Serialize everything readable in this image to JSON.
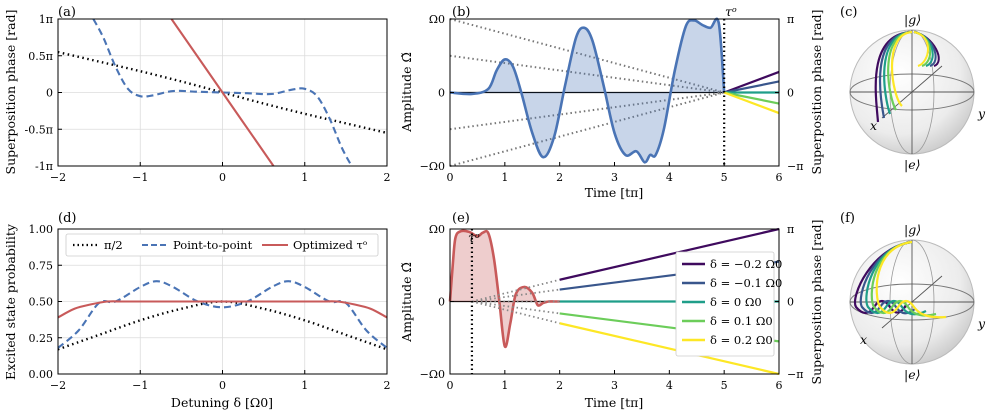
{
  "chart_data": [
    {
      "panel": "(a)",
      "type": "line",
      "xlabel": "",
      "ylabel": "Superposition phase [rad]",
      "xlim": [
        -2,
        2
      ],
      "ylim": [
        -1,
        1
      ],
      "xticks": [
        "−2",
        "−1",
        "0",
        "1",
        "2"
      ],
      "yticks": [
        "-1π",
        "-0.5π",
        "0",
        "0.5π",
        "1π"
      ],
      "grid": true,
      "series": [
        {
          "name": "π/2",
          "style": "dotted",
          "color": "#000000",
          "x": [
            -2,
            -1.5,
            -1,
            -0.5,
            0,
            0.5,
            1,
            1.5,
            2
          ],
          "y": [
            0.55,
            0.42,
            0.29,
            0.15,
            0,
            -0.15,
            -0.29,
            -0.42,
            -0.55
          ]
        },
        {
          "name": "Point-to-point",
          "style": "dashed",
          "color": "#4a74b5",
          "x": [
            -1.57,
            -1.45,
            -1.3,
            -1.15,
            -1.0,
            -0.85,
            -0.6,
            -0.3,
            0,
            0.3,
            0.6,
            0.85,
            1.0,
            1.15,
            1.3,
            1.45,
            1.57
          ],
          "y": [
            1.0,
            0.75,
            0.35,
            0.05,
            -0.05,
            -0.04,
            0.02,
            0.01,
            0,
            -0.01,
            -0.02,
            0.04,
            0.05,
            -0.05,
            -0.35,
            -0.75,
            -1.0
          ]
        },
        {
          "name": "Optimized τᵒ",
          "style": "solid",
          "color": "#c85a5a",
          "x": [
            -0.62,
            0,
            0.62
          ],
          "y": [
            1.0,
            0,
            -1.0
          ]
        }
      ]
    },
    {
      "panel": "(b)",
      "type": "area",
      "xlabel": "Time [tπ]",
      "ylabel": "Amplitude Ω̃",
      "ylabel_right": "Superposition phase [rad]",
      "xlim": [
        0,
        6
      ],
      "ylim": [
        -1,
        1
      ],
      "xticks": [
        "0",
        "1",
        "2",
        "3",
        "4",
        "5",
        "6"
      ],
      "yticks": [
        "−Ω0",
        "0",
        "Ω0"
      ],
      "yticks_right": [
        "−π",
        "0",
        "π"
      ],
      "annotation": "τᵒ",
      "tau": 5,
      "pulse": {
        "x": [
          0,
          0.4,
          0.7,
          0.85,
          1.0,
          1.15,
          1.3,
          1.5,
          1.7,
          1.9,
          2.1,
          2.3,
          2.45,
          2.6,
          2.8,
          3.0,
          3.2,
          3.4,
          3.55,
          3.65,
          3.75,
          3.9,
          4.1,
          4.3,
          4.45,
          4.6,
          4.75,
          4.9,
          5.0
        ],
        "y": [
          0,
          -0.02,
          0.05,
          0.3,
          0.45,
          0.35,
          0,
          -0.55,
          -0.88,
          -0.6,
          0.1,
          0.75,
          0.88,
          0.7,
          0.1,
          -0.55,
          -0.85,
          -0.8,
          -0.95,
          -0.85,
          -0.85,
          -0.5,
          0.3,
          0.9,
          0.98,
          0.92,
          0.88,
          0.95,
          0
        ]
      },
      "phase_lines": [
        {
          "delta": -0.2,
          "color": "#3f0a5e",
          "y_end": 0.28
        },
        {
          "delta": -0.1,
          "color": "#39568c",
          "y_end": 0.15
        },
        {
          "delta": 0.0,
          "color": "#1f9e89",
          "y_end": 0.0
        },
        {
          "delta": 0.1,
          "color": "#6ccd5a",
          "y_end": -0.15
        },
        {
          "delta": 0.2,
          "color": "#fde725",
          "y_end": -0.28
        }
      ]
    },
    {
      "panel": "(c)",
      "type": "other",
      "description_labels": [
        "|g⟩",
        "|e⟩",
        "x",
        "y"
      ]
    },
    {
      "panel": "(d)",
      "type": "line",
      "xlabel": "Detuning δ [Ω0]",
      "ylabel": "Excited state probability",
      "xlim": [
        -2,
        2
      ],
      "ylim": [
        0,
        1
      ],
      "xticks": [
        "−2",
        "−1",
        "0",
        "1",
        "2"
      ],
      "yticks": [
        "0.00",
        "0.25",
        "0.50",
        "0.75",
        "1.00"
      ],
      "grid": true,
      "legend": "top",
      "series": [
        {
          "name": "π/2",
          "style": "dotted",
          "color": "#000000",
          "x": [
            -2,
            -1.5,
            -1,
            -0.5,
            0,
            0.5,
            1,
            1.5,
            2
          ],
          "y": [
            0.17,
            0.27,
            0.37,
            0.45,
            0.5,
            0.45,
            0.37,
            0.27,
            0.17
          ]
        },
        {
          "name": "Point-to-point",
          "style": "dashed",
          "color": "#4a74b5",
          "x": [
            -2,
            -1.75,
            -1.5,
            -1.3,
            -1.0,
            -0.8,
            -0.6,
            -0.3,
            0,
            0.3,
            0.6,
            0.8,
            1.0,
            1.3,
            1.5,
            1.75,
            2
          ],
          "y": [
            0.18,
            0.3,
            0.49,
            0.5,
            0.6,
            0.64,
            0.6,
            0.5,
            0.46,
            0.5,
            0.6,
            0.64,
            0.6,
            0.5,
            0.49,
            0.3,
            0.18
          ]
        },
        {
          "name": "Optimized τᵒ",
          "style": "solid",
          "color": "#c85a5a",
          "x": [
            -2,
            -1.8,
            -1.6,
            -1.4,
            -1.2,
            -1,
            0,
            1,
            1.2,
            1.4,
            1.6,
            1.8,
            2
          ],
          "y": [
            0.39,
            0.45,
            0.48,
            0.5,
            0.5,
            0.5,
            0.5,
            0.5,
            0.5,
            0.5,
            0.48,
            0.45,
            0.39
          ]
        }
      ],
      "legend_entries": [
        "π/2",
        "Point-to-point",
        "Optimized τᵒ"
      ]
    },
    {
      "panel": "(e)",
      "type": "area",
      "xlabel": "Time [tπ]",
      "ylabel": "Amplitude Ω̃",
      "ylabel_right": "Superposition phase [rad]",
      "xlim": [
        0,
        6
      ],
      "ylim": [
        -1,
        1
      ],
      "xticks": [
        "0",
        "1",
        "2",
        "3",
        "4",
        "5",
        "6"
      ],
      "yticks": [
        "−Ω0",
        "0",
        "Ω0"
      ],
      "yticks_right": [
        "−π",
        "0",
        "π"
      ],
      "annotation": "τᵒ",
      "tau": 0.4,
      "pulse": {
        "x": [
          0,
          0.05,
          0.1,
          0.2,
          0.35,
          0.5,
          0.6,
          0.7,
          0.8,
          0.9,
          1.0,
          1.1,
          1.2,
          1.35,
          1.5,
          1.6,
          1.7,
          1.8,
          1.9,
          2.0
        ],
        "y": [
          0,
          0.5,
          0.88,
          0.97,
          0.96,
          0.9,
          0.95,
          0.94,
          0.6,
          0.0,
          -0.62,
          -0.3,
          0.1,
          0.2,
          0.12,
          -0.05,
          -0.02,
          0.0,
          0.0,
          0.0
        ]
      },
      "phase_lines": [
        {
          "delta": -0.2,
          "label": "δ = −0.2 Ω0",
          "color": "#3f0a5e",
          "y_end": 1.0
        },
        {
          "delta": -0.1,
          "label": "δ = −0.1 Ω0",
          "color": "#39568c",
          "y_end": 0.55
        },
        {
          "delta": 0.0,
          "label": "δ = 0 Ω0",
          "color": "#1f9e89",
          "y_end": 0.0
        },
        {
          "delta": 0.1,
          "label": "δ = 0.1 Ω0",
          "color": "#6ccd5a",
          "y_end": -0.55
        },
        {
          "delta": 0.2,
          "label": "δ = 0.2 Ω0",
          "color": "#fde725",
          "y_end": -1.0
        }
      ]
    },
    {
      "panel": "(f)",
      "type": "other",
      "description_labels": [
        "|g⟩",
        "|e⟩",
        "x",
        "y"
      ]
    }
  ]
}
